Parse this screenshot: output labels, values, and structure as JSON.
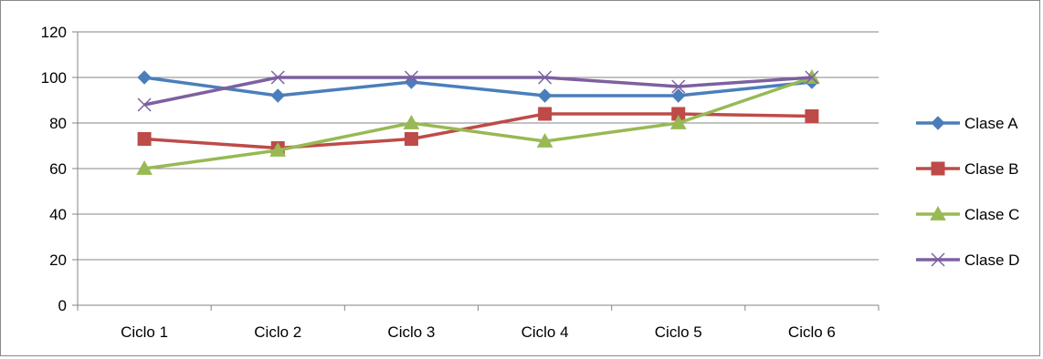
{
  "chart_data": {
    "type": "line",
    "categories": [
      "Ciclo 1",
      "Ciclo 2",
      "Ciclo 3",
      "Ciclo 4",
      "Ciclo 5",
      "Ciclo 6"
    ],
    "yticks": [
      "0",
      "20",
      "40",
      "60",
      "80",
      "100",
      "120"
    ],
    "ylim": [
      0,
      120
    ],
    "grid": true,
    "legend_position": "right",
    "series": [
      {
        "name": "Clase A",
        "color": "#4A7EBB",
        "marker": "diamond",
        "values": [
          100,
          92,
          98,
          92,
          92,
          98
        ]
      },
      {
        "name": "Clase B",
        "color": "#BE4B48",
        "marker": "square",
        "values": [
          73,
          69,
          73,
          84,
          84,
          83
        ]
      },
      {
        "name": "Clase C",
        "color": "#98B954",
        "marker": "triangle",
        "values": [
          60,
          68,
          80,
          72,
          80,
          100
        ]
      },
      {
        "name": "Clase D",
        "color": "#7D60A0",
        "marker": "x",
        "values": [
          88,
          100,
          100,
          100,
          96,
          100
        ]
      }
    ]
  }
}
